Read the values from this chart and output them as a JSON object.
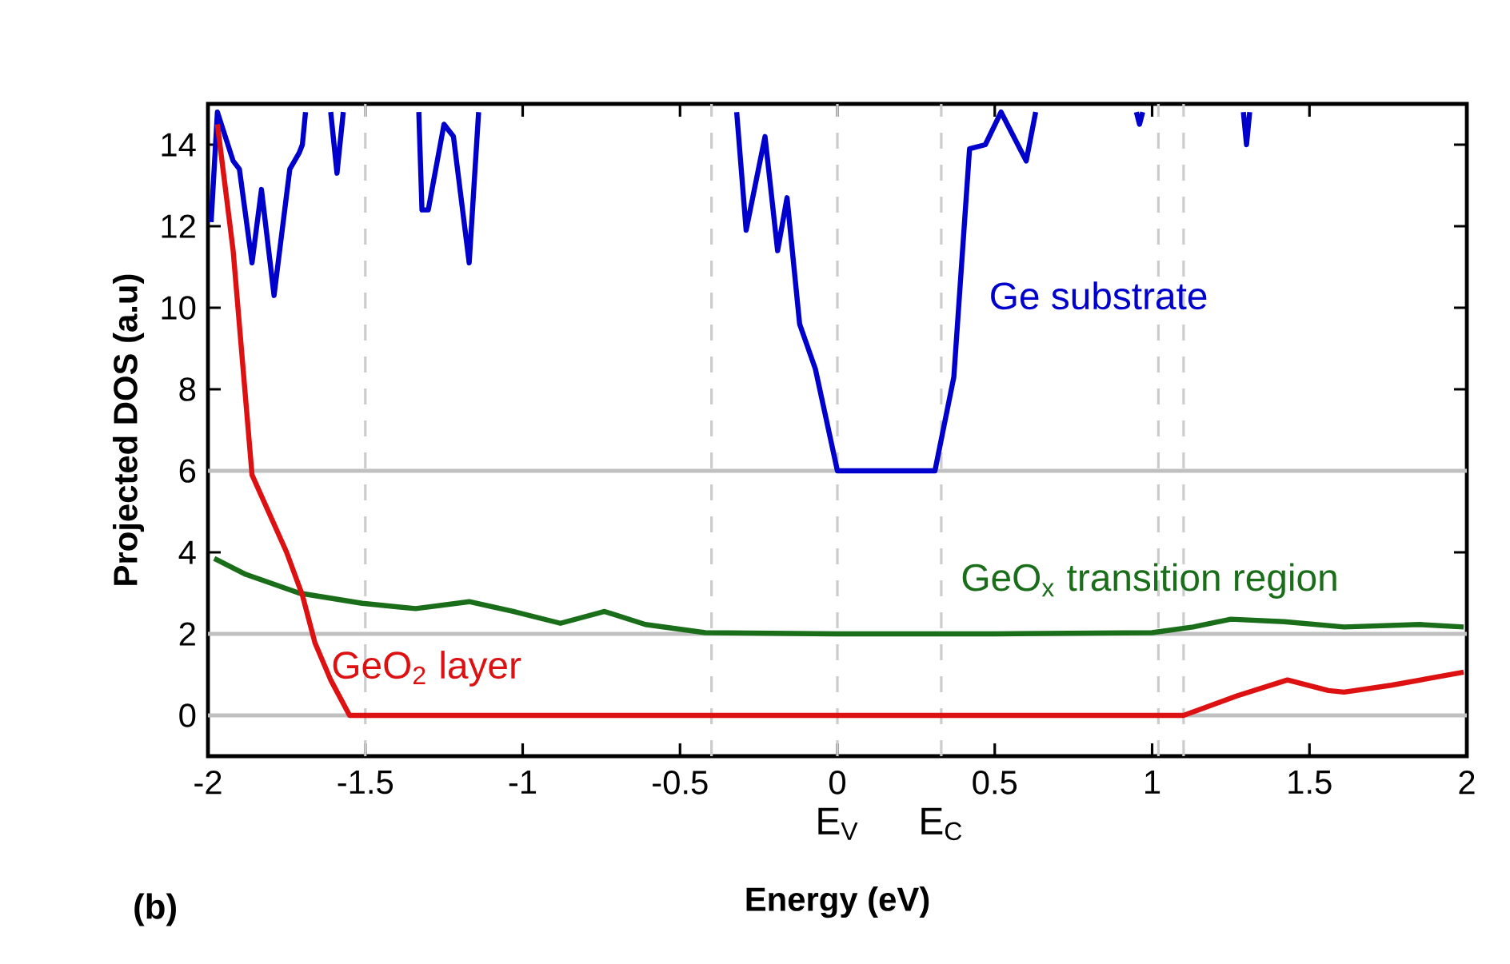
{
  "chart_data": {
    "type": "line",
    "xlabel": "Energy (eV)",
    "ylabel": "Projected DOS (a.u)",
    "annotations": [
      "(b)"
    ],
    "xlim": [
      -2,
      2
    ],
    "ylim": [
      -1,
      15
    ],
    "xticks": [
      -2,
      -1.5,
      -1,
      -0.5,
      0,
      0.5,
      1,
      1.5,
      2
    ],
    "yticks": [
      0,
      2,
      4,
      6,
      8,
      10,
      12,
      14
    ],
    "series": [
      {
        "name": "Ge substrate",
        "color": "#0000cc",
        "x": [
          -1.99,
          -1.97,
          -1.92,
          -1.9,
          -1.86,
          -1.83,
          -1.79,
          -1.74,
          -1.71,
          -1.7,
          -1.69,
          -1.65,
          -1.61,
          -1.59,
          -1.57,
          -1.45,
          -1.33,
          -1.32,
          -1.3,
          -1.25,
          -1.22,
          -1.17,
          -1.14,
          -0.7,
          -0.32,
          -0.29,
          -0.23,
          -0.19,
          -0.16,
          -0.12,
          -0.07,
          0.0,
          0.31,
          0.37,
          0.42,
          0.47,
          0.52,
          0.6,
          0.63,
          0.8,
          0.95,
          0.96,
          0.97,
          1.1,
          1.29,
          1.3,
          1.31
        ],
        "values": [
          12.1,
          14.8,
          13.6,
          13.4,
          11.1,
          12.9,
          10.3,
          13.4,
          13.8,
          14.0,
          14.8,
          null,
          14.8,
          13.3,
          14.8,
          null,
          14.8,
          12.4,
          12.4,
          14.5,
          14.2,
          11.1,
          14.8,
          null,
          14.8,
          11.9,
          14.2,
          11.4,
          12.7,
          9.6,
          8.5,
          6,
          6,
          8.3,
          13.9,
          14.0,
          14.8,
          13.6,
          14.8,
          null,
          14.8,
          14.5,
          14.8,
          null,
          14.8,
          14.0,
          14.8
        ]
      },
      {
        "name": "GeO$_{x}$ transition region",
        "color": "#1a6e1a",
        "x": [
          -1.98,
          -1.88,
          -1.71,
          -1.51,
          -1.34,
          -1.17,
          -1.03,
          -0.88,
          -0.74,
          -0.61,
          -0.42,
          0.0,
          0.5,
          1.0,
          1.13,
          1.25,
          1.42,
          1.61,
          1.85,
          1.99
        ],
        "values": [
          3.85,
          3.46,
          3.0,
          2.75,
          2.62,
          2.79,
          2.55,
          2.26,
          2.55,
          2.23,
          2.03,
          2.0,
          2.0,
          2.03,
          2.17,
          2.36,
          2.3,
          2.17,
          2.23,
          2.17
        ]
      },
      {
        "name": "GeO$_{2}$ layer",
        "color": "#dd1111",
        "x": [
          -1.97,
          -1.92,
          -1.86,
          -1.75,
          -1.7,
          -1.66,
          -1.61,
          -1.55,
          -1.5,
          -0.4,
          0.5,
          1.1,
          1.27,
          1.43,
          1.56,
          1.61,
          1.76,
          1.99
        ],
        "values": [
          14.5,
          11.4,
          5.9,
          4.0,
          2.95,
          1.78,
          0.87,
          0,
          0,
          0,
          0,
          0,
          0.48,
          0.87,
          0.61,
          0.57,
          0.74,
          1.06
        ]
      }
    ],
    "ref_lines": [
      {
        "axis": "y",
        "value": 0,
        "color": "#c0c0c0",
        "line_style": "solid"
      },
      {
        "axis": "y",
        "value": 2,
        "color": "#c0c0c0",
        "line_style": "solid"
      },
      {
        "axis": "y",
        "value": 6,
        "color": "#c0c0c0",
        "line_style": "solid"
      },
      {
        "axis": "x",
        "value": -1.5,
        "color": "#cccccc",
        "line_style": "dashed"
      },
      {
        "axis": "x",
        "value": -0.4,
        "color": "#cccccc",
        "line_style": "dashed"
      },
      {
        "axis": "x",
        "value": 0,
        "color": "#cccccc",
        "line_style": "dashed",
        "label": "E$_{V}$"
      },
      {
        "axis": "x",
        "value": 0.33,
        "color": "#cccccc",
        "line_style": "dashed",
        "label": "E$_{C}$"
      },
      {
        "axis": "x",
        "value": 1.02,
        "color": "#cccccc",
        "line_style": "dashed"
      },
      {
        "axis": "x",
        "value": 1.1,
        "color": "#cccccc",
        "line_style": "dashed"
      }
    ]
  }
}
